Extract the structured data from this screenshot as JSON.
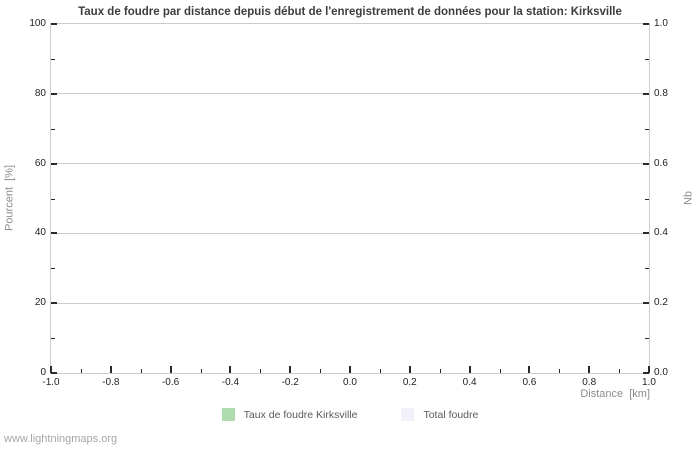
{
  "title": "Taux de foudre par distance depuis début de l'enregistrement de données pour la station: Kirksville",
  "footer": {
    "link_label": "www.lightningmaps.org"
  },
  "legend": [
    {
      "label": "Taux de foudre Kirksville",
      "color": "#aedcae"
    },
    {
      "label": "Total foudre",
      "color": "#f1f1fc"
    }
  ],
  "axes": {
    "x_title": "Distance  [km]",
    "y_left_title": "Pourcent  [%]",
    "y_right_title": "Nb"
  },
  "chart_data": {
    "type": "bar",
    "title": "Taux de foudre par distance depuis début de l'enregistrement de données pour la station: Kirksville",
    "xlabel": "Distance  [km]",
    "ylabel": "Pourcent  [%]",
    "ylabel_right": "Nb",
    "xlim": [
      -1.0,
      1.0
    ],
    "ylim_left": [
      0,
      100
    ],
    "ylim_right": [
      0.0,
      1.0
    ],
    "x_tick_labels": [
      "-1.0",
      "-0.8",
      "-0.6",
      "-0.4",
      "-0.2",
      "0.0",
      "0.2",
      "0.4",
      "0.6",
      "0.8",
      "1.0"
    ],
    "y_left_tick_labels": [
      "0",
      "20",
      "40",
      "60",
      "80",
      "100"
    ],
    "y_right_tick_labels": [
      "0.0",
      "0.2",
      "0.4",
      "0.6",
      "0.8",
      "1.0"
    ],
    "grid": "horizontal-major-only",
    "legend_position": "bottom-center",
    "series": [
      {
        "name": "Taux de foudre Kirksville",
        "color": "#aedcae",
        "axis": "left",
        "x": [],
        "values": []
      },
      {
        "name": "Total foudre",
        "color": "#f1f1fc",
        "axis": "right",
        "x": [],
        "values": []
      }
    ]
  },
  "colors": {
    "grid": "#cccccc",
    "plot_border": "#cccccc",
    "tick": "#2a2a2a",
    "title_text": "#3d3d3d",
    "axis_title_text": "#8b8b8b",
    "legend_text": "#5a5a5a",
    "footer_text": "#a6a6a6",
    "background": "#ffffff"
  }
}
